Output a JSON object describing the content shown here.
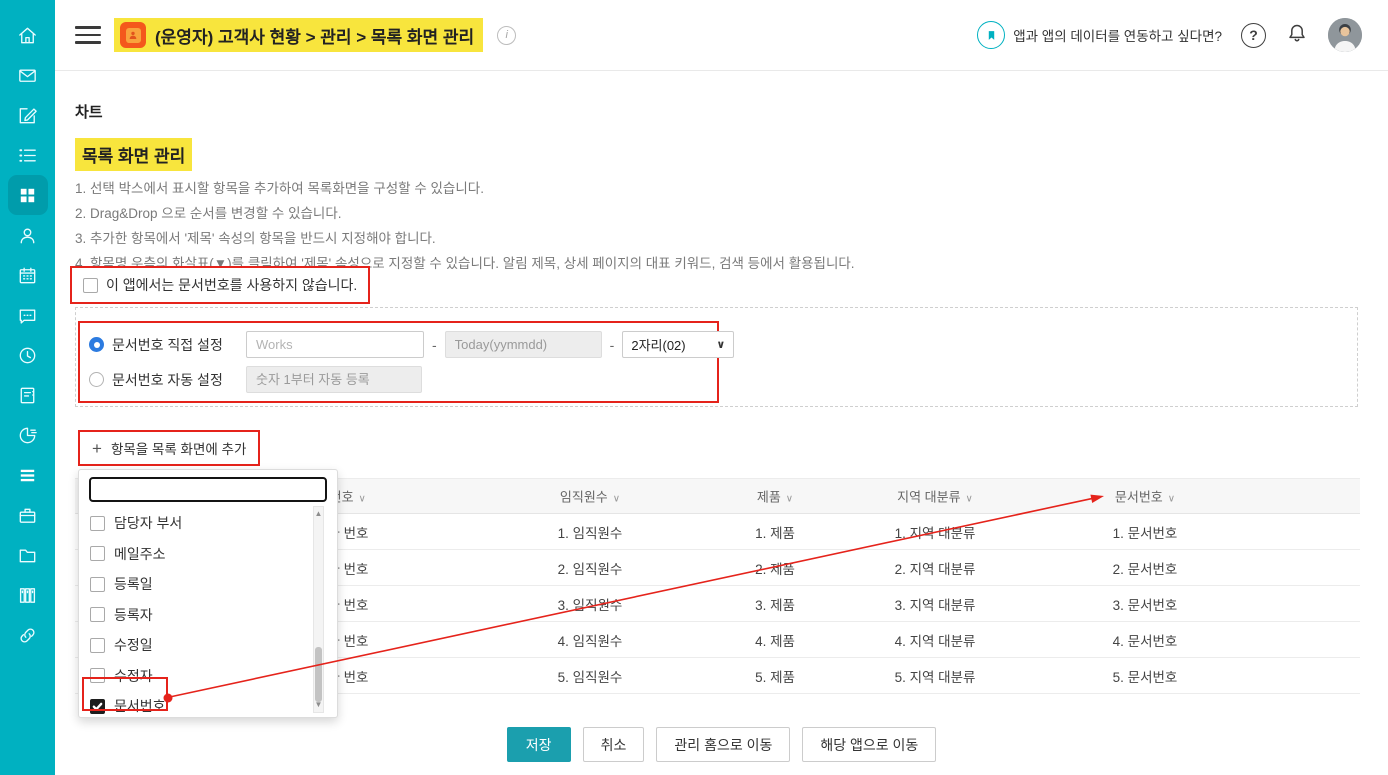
{
  "colors": {
    "sidebar_teal": "#00b1c1",
    "button_teal": "#1b9fae",
    "highlight_yellow": "#f8e53d",
    "annotation_red": "#e5231b"
  },
  "icons": {
    "chevron_down": "∨",
    "plus": "+",
    "scroll_up_arrow": "▲",
    "scroll_down_arrow": "▼",
    "info": "i",
    "question": "?"
  },
  "sidebar": {
    "items": [
      "home",
      "mail",
      "compose",
      "list",
      "apps-grid",
      "contacts",
      "calendar",
      "chat",
      "clock",
      "note",
      "chart",
      "rows",
      "briefcase",
      "folder",
      "archive",
      "link"
    ],
    "active_item": "apps-grid"
  },
  "header": {
    "app_title": "(운영자) 고객사 현황 > 관리 > 목록 화면 관리",
    "banner_text": "앱과 앱의 데이터를 연동하고 싶다면?"
  },
  "main": {
    "section_label": "차트",
    "title": "목록 화면 관리",
    "instructions": [
      "1. 선택 박스에서 표시할 항목을 추가하여 목록화면을 구성할 수 있습니다.",
      "2. Drag&Drop 으로 순서를 변경할 수 있습니다.",
      "3. 추가한 항목에서 '제목' 속성의 항목을 반드시 지정해야 합니다.",
      "4. 항목명 우측의 화살표(▼)를 클릭하여 '제목' 속성으로 지정할 수 있습니다. 알림 제목, 상세 페이지의 대표 키워드, 검색 등에서 활용됩니다."
    ],
    "no_doc_checkbox": {
      "checked": false,
      "label": "이 앱에서는 문서번호를 사용하지 않습니다."
    },
    "doc_number": {
      "direct": {
        "selected": true,
        "label": "문서번호 직접 설정",
        "prefix_placeholder": "Works",
        "date_placeholder": "Today(yymmdd)",
        "digits_value": "2자리(02)"
      },
      "auto": {
        "selected": false,
        "label": "문서번호 자동 설정",
        "placeholder": "숫자 1부터 자동 등록"
      },
      "separator": "-"
    },
    "add_button_label": "항목을 목록 화면에 추가",
    "field_picker": {
      "search_value": "",
      "items": [
        {
          "label": "담당자 부서",
          "checked": false
        },
        {
          "label": "메일주소",
          "checked": false
        },
        {
          "label": "등록일",
          "checked": false
        },
        {
          "label": "등록자",
          "checked": false
        },
        {
          "label": "수정일",
          "checked": false
        },
        {
          "label": "수정자",
          "checked": false
        },
        {
          "label": "문서번호",
          "checked": true,
          "annotated": true
        }
      ]
    },
    "table": {
      "columns": [
        "사업자 번호",
        "임직원수",
        "제품",
        "지역 대분류",
        "문서번호"
      ],
      "rows": [
        [
          "1. 사업자 번호",
          "1. 임직원수",
          "1. 제품",
          "1. 지역 대분류",
          "1. 문서번호"
        ],
        [
          "2. 사업자 번호",
          "2. 임직원수",
          "2. 제품",
          "2. 지역 대분류",
          "2. 문서번호"
        ],
        [
          "3. 사업자 번호",
          "3. 임직원수",
          "3. 제품",
          "3. 지역 대분류",
          "3. 문서번호"
        ],
        [
          "4. 사업자 번호",
          "4. 임직원수",
          "4. 제품",
          "4. 지역 대분류",
          "4. 문서번호"
        ],
        [
          "5. 사업자 번호",
          "5. 임직원수",
          "5. 제품",
          "5. 지역 대분류",
          "5. 문서번호"
        ]
      ]
    },
    "actions": [
      "저장",
      "취소",
      "관리 홈으로 이동",
      "해당 앱으로 이동"
    ]
  }
}
